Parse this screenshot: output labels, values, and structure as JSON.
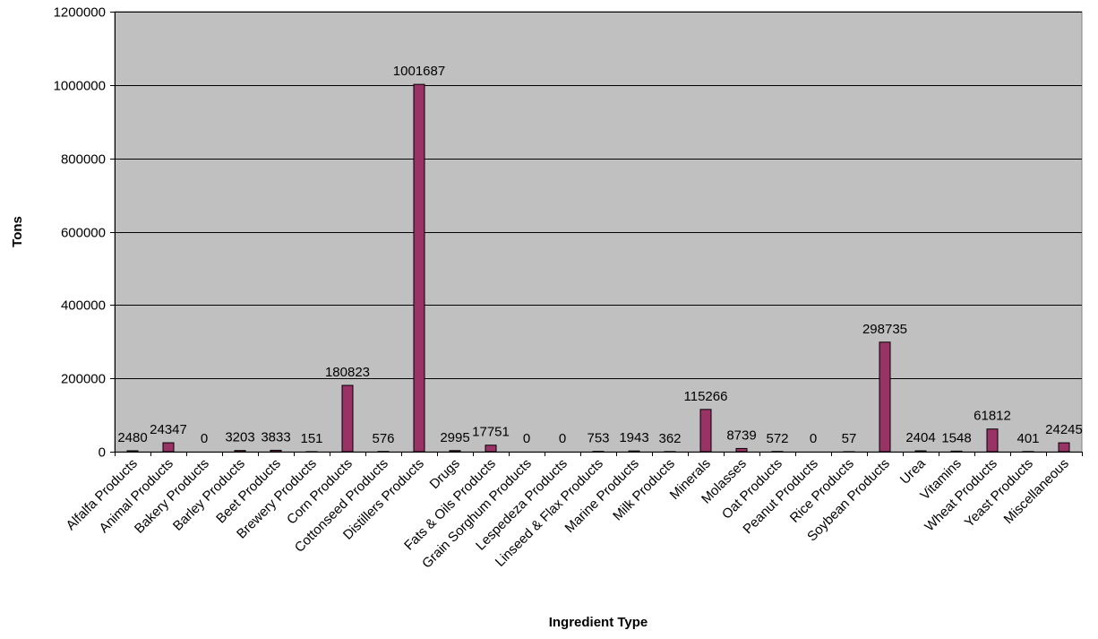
{
  "chart_data": {
    "type": "bar",
    "title": "",
    "xlabel": "Ingredient Type",
    "ylabel": "Tons",
    "ylim": [
      0,
      1200000
    ],
    "yticks": [
      0,
      200000,
      400000,
      600000,
      800000,
      1000000,
      1200000
    ],
    "ytick_labels": [
      "0",
      "200000",
      "400000",
      "600000",
      "800000",
      "1000000",
      "1200000"
    ],
    "grid": true,
    "legend": "none",
    "categories": [
      "Alfalfa Products",
      "Animal Products",
      "Bakery Products",
      "Barley Products",
      "Beet Products",
      "Brewery Products",
      "Corn Products",
      "Cottonseed Products",
      "Distillers Products",
      "Drugs",
      "Fats & Oils Products",
      "Grain Sorghum Products",
      "Lespedeza Products",
      "Linseed & Flax Products",
      "Marine Products",
      "Milk Products",
      "Minerals",
      "Molasses",
      "Oat Products",
      "Peanut Products",
      "Rice Products",
      "Soybean Products",
      "Urea",
      "Vitamins",
      "Wheat Products",
      "Yeast Products",
      "Miscellaneous"
    ],
    "values": [
      2480,
      24347,
      0,
      3203,
      3833,
      151,
      180823,
      576,
      1001687,
      2995,
      17751,
      0,
      0,
      753,
      1943,
      362,
      115266,
      8739,
      572,
      0,
      57,
      298735,
      2404,
      1548,
      61812,
      401,
      24245
    ],
    "data_labels": [
      "2480",
      "24347",
      "0",
      "3203",
      "3833",
      "151",
      "180823",
      "576",
      "1001687",
      "2995",
      "17751",
      "0",
      "0",
      "753",
      "1943",
      "362",
      "115266",
      "8739",
      "572",
      "0",
      "57",
      "298735",
      "2404",
      "1548",
      "61812",
      "401",
      "24245"
    ],
    "colors": {
      "plot_background": "#c0c0c0",
      "bar_fill": "#993366",
      "bar_stroke": "#000000",
      "gridline": "#000000"
    }
  }
}
